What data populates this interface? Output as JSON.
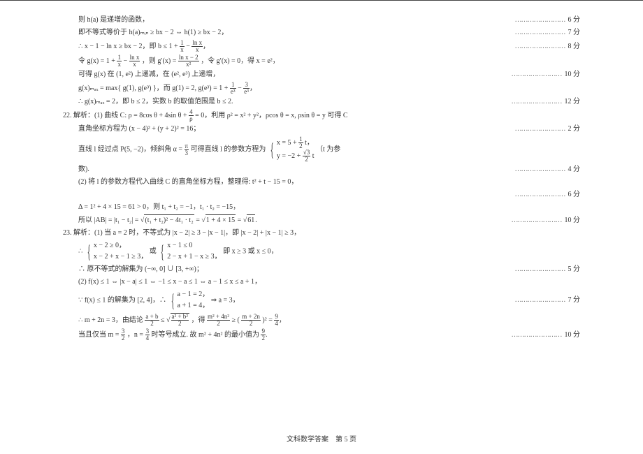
{
  "lines": {
    "l1": "则 h(a) 是递增的函数，",
    "s1": "6 分",
    "l2": "即不等式等价于 h(a)ₘᵢₙ ≥ bx − 2 ⇔ h(1) ≥ bx − 2，",
    "s2": "7 分",
    "l3a": "∴ x − 1 − ln x ≥ bx − 2，即 b ≤ 1 + ",
    "l3b": " − ",
    "s3": "8 分",
    "l4a": "令 g(x) = 1 + ",
    "l4b": " − ",
    "l4c": "，则 g′(x) = ",
    "l4d": "，令 g′(x) = 0，得 x = e²，",
    "l5": "可得 g(x) 在 (1, e²) 上递减，在 (e², e³) 上递增，",
    "s5": "10 分",
    "l6a": "g(x)ₘₐₓ = max{ g(1), g(e³) }，而 g(1) = 2, g(e³) = 1 + ",
    "l6b": " − ",
    "l7": "∴ g(x)ₘₐₓ = 2，即 b ≤ 2，实数 b 的取值范围是 b ≤ 2.",
    "s7": "12 分",
    "q22": "22. 解析：(1) 曲线 C: ρ = 8cos θ + 4sin θ + ",
    "q22b": " = 0，利用 ρ² = x² + y²，ρcos θ = x, ρsin θ = y 可得 C",
    "l9": "直角坐标方程为 (x − 4)² + (y + 2)² = 16；",
    "s9": "2 分",
    "l10a": "直线 l 经过点 P(5, −2)，倾斜角 α = ",
    "l10b": " 可得直线 l 的参数方程为 ",
    "l10c": "（t 为参",
    "case1a": "x = 5 + ",
    "case1b": " t，",
    "case2a": "y = −2 + ",
    "case2b": " t",
    "l11": "数).",
    "s11": "4 分",
    "l12": "(2) 将 l 的参数方程代入曲线 C 的直角坐标方程，整理得: t² + t − 15 = 0，",
    "s12": "6 分",
    "l13": "Δ = 1² + 4 × 15 = 61 > 0，则 t₁ + t₂ = −1，t₁ · t₂ = −15，",
    "l14a": "所以 |AB| = |t₁ − t₂| = ",
    "l14b": "(t₁ + t₂)² − 4t₁ · t₂",
    "l14c": " = ",
    "l14d": "1 + 4 × 15",
    "l14e": " = ",
    "l14f": "61",
    "s14": "10 分",
    "q23": "23. 解析：(1) 当 a = 2 时，不等式为 |x − 2| ≥ 3 − |x − 1|，即 |x − 2| + |x − 1| ≥ 3，",
    "l16a": "∴ ",
    "c16a": "x − 2 ≥ 0，",
    "c16b": "x − 2 + x − 1 ≥ 3，",
    "l16b": " 或 ",
    "c16c": "x − 1 ≤ 0",
    "c16d": "2 − x + 1 − x ≥ 3，",
    "l16c": " 即 x ≥ 3 或 x ≤ 0，",
    "l17": "∴ 原不等式的解集为 (−∞, 0] ∪ [3, +∞)；",
    "s17": "5 分",
    "l18": "(2) f(x) ≤ 1 ⇔ |x − a| ≤ 1 ⇔ −1 ≤ x − a ≤ 1 ⇔ a − 1 ≤ x ≤ a + 1，",
    "l19a": "∵ f(x) ≤ 1 的解集为 [2, 4]，∴ ",
    "c19a": "a − 1 = 2，",
    "c19b": "a + 1 = 4，",
    "l19b": " ⇒ a = 3，",
    "s19": "7 分",
    "l20a": "∴ m + 2n = 3，由结论 ",
    "l20b": " ≤ ",
    "l20c": "，得 ",
    "l20d": " ≥ (",
    "l20e": ")² = ",
    "l21": "当且仅当 m = ",
    "l21b": "，n = ",
    "l21c": " 时等号成立. 故 m² + 4n² 的最小值为 ",
    "s21": "10 分",
    "footer": "文科数学答案　第 5 页"
  },
  "fracs": {
    "oneX": {
      "n": "1",
      "d": "x"
    },
    "lnxX": {
      "n": "ln x",
      "d": "x"
    },
    "lnxm2": {
      "n": "ln x − 2",
      "d": "x²"
    },
    "oneE3": {
      "n": "1",
      "d": "e³"
    },
    "threeE3": {
      "n": "3",
      "d": "e³"
    },
    "fourRho": {
      "n": "4",
      "d": "ρ"
    },
    "pi3": {
      "n": "π",
      "d": "3"
    },
    "half": {
      "n": "1",
      "d": "2"
    },
    "r32": {
      "n": "√3",
      "d": "2"
    },
    "ab2": {
      "n": "a + b",
      "d": "2"
    },
    "a2b22": {
      "n": "a² + b²",
      "d": "2"
    },
    "m24n2": {
      "n": "m² + 4n²",
      "d": "2"
    },
    "m2n2": {
      "n": "m + 2n",
      "d": "2"
    },
    "nineFour": {
      "n": "9",
      "d": "4"
    },
    "threeHalf": {
      "n": "3",
      "d": "2"
    },
    "threeFour": {
      "n": "3",
      "d": "4"
    },
    "nineTwo": {
      "n": "9",
      "d": "2"
    }
  }
}
